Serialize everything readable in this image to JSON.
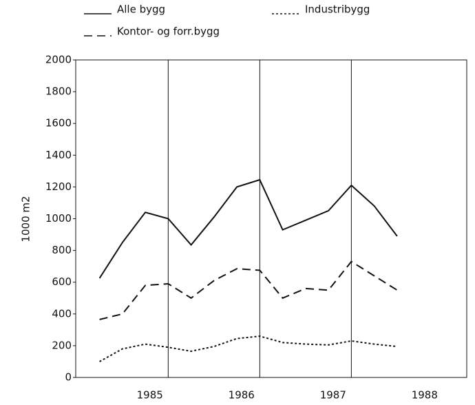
{
  "chart_data": {
    "type": "line",
    "y_label": "1000 m2",
    "x": [
      1984.45,
      1984.7,
      1984.95,
      1985.2,
      1985.45,
      1985.7,
      1985.95,
      1986.2,
      1986.45,
      1986.7,
      1986.95,
      1987.2,
      1987.45,
      1987.7
    ],
    "series": [
      {
        "name": "Alle bygg",
        "color": "#111111",
        "style": "solid",
        "values": [
          625,
          850,
          1040,
          1000,
          835,
          1010,
          1200,
          1245,
          930,
          990,
          1050,
          1210,
          1080,
          890
        ]
      },
      {
        "name": "Industribygg",
        "color": "#111111",
        "style": "dotted",
        "values": [
          100,
          180,
          210,
          190,
          165,
          195,
          245,
          260,
          220,
          210,
          205,
          230,
          210,
          195
        ]
      },
      {
        "name": "Kontor- og forr.bygg",
        "color": "#111111",
        "style": "dashed",
        "values": [
          365,
          400,
          580,
          590,
          500,
          610,
          685,
          675,
          500,
          560,
          550,
          730,
          640,
          550
        ]
      }
    ],
    "xlim": [
      1984.19,
      1988.46
    ],
    "xticks": [
      1985,
      1986,
      1987,
      1988
    ],
    "xgrid": [
      1985.2,
      1986.2,
      1987.2
    ],
    "ylim": [
      0,
      2000
    ],
    "yticks": [
      0,
      200,
      400,
      600,
      800,
      1000,
      1200,
      1400,
      1600,
      1800,
      2000
    ]
  }
}
